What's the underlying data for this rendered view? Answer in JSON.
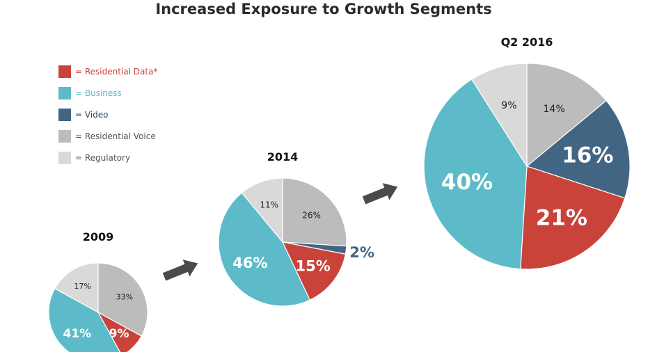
{
  "chart_data": {
    "type": "pie",
    "title": "Increased Exposure to Growth Segments",
    "legend": {
      "placement": "left",
      "entries": [
        {
          "key": "data",
          "label": "= Residential  Data*",
          "color": "#c9433b",
          "text_color": "#c9433b"
        },
        {
          "key": "business",
          "label": "= Business",
          "color": "#5dbbc9",
          "text_color": "#5dbbc9"
        },
        {
          "key": "video",
          "label": "= Video",
          "color": "#436584",
          "text_color": "#2e4660"
        },
        {
          "key": "voice",
          "label": "= Residential  Voice",
          "color": "#bcbcbc",
          "text_color": "#555555"
        },
        {
          "key": "regulatory",
          "label": "= Regulatory",
          "color": "#d9d9d9",
          "text_color": "#555555"
        }
      ]
    },
    "pies": [
      {
        "title": "2009",
        "slices": [
          {
            "key": "voice",
            "value": 33,
            "label": "33%"
          },
          {
            "key": "data",
            "value": 9,
            "label": "9%"
          },
          {
            "key": "business",
            "value": 41,
            "label": "41%"
          },
          {
            "key": "regulatory",
            "value": 17,
            "label": "17%"
          }
        ]
      },
      {
        "title": "2014",
        "slices": [
          {
            "key": "voice",
            "value": 26,
            "label": "26%"
          },
          {
            "key": "video",
            "value": 2,
            "label": "2%"
          },
          {
            "key": "data",
            "value": 15,
            "label": "15%"
          },
          {
            "key": "business",
            "value": 46,
            "label": "46%"
          },
          {
            "key": "regulatory",
            "value": 11,
            "label": "11%"
          }
        ]
      },
      {
        "title": "Q2 2016",
        "slices": [
          {
            "key": "voice",
            "value": 14,
            "label": "14%"
          },
          {
            "key": "video",
            "value": 16,
            "label": "16%"
          },
          {
            "key": "data",
            "value": 21,
            "label": "21%"
          },
          {
            "key": "business",
            "value": 40,
            "label": "40%"
          },
          {
            "key": "regulatory",
            "value": 9,
            "label": "9%"
          }
        ]
      }
    ],
    "arrow_color": "#4a4b4d"
  }
}
